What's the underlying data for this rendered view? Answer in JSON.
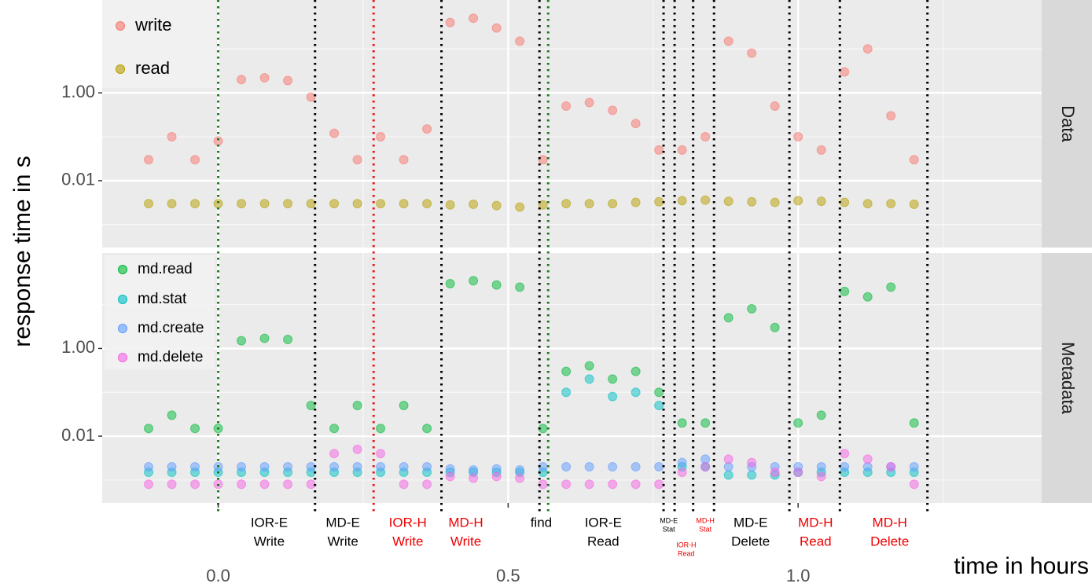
{
  "chart_data": [
    {
      "type": "scatter",
      "facet": "Data",
      "y_label": "response time in s",
      "log_y": true,
      "grid": true,
      "xlim": [
        -0.2,
        1.42
      ],
      "ylim": [
        0.0003,
        130
      ],
      "yticks": [
        0.01,
        {
          "value": 1,
          "label": "1.00"
        }
      ],
      "yminor": [
        0.001,
        0.1,
        10
      ],
      "x": [
        -0.12,
        -0.08,
        -0.04,
        0,
        0.04,
        0.08,
        0.12,
        0.16,
        0.2,
        0.24,
        0.28,
        0.32,
        0.36,
        0.4,
        0.44,
        0.48,
        0.52,
        0.56,
        0.6,
        0.64,
        0.68,
        0.72,
        0.76,
        0.8,
        0.84,
        0.88,
        0.92,
        0.96,
        1.0,
        1.04,
        1.08,
        1.12,
        1.16,
        1.2
      ],
      "series": [
        {
          "name": "write",
          "color": "#f8766d",
          "values": [
            0.03,
            0.1,
            0.03,
            0.08,
            2,
            2.2,
            1.9,
            0.8,
            0.12,
            0.03,
            0.1,
            0.03,
            0.15,
            40,
            50,
            30,
            15,
            0.03,
            0.5,
            0.6,
            0.4,
            0.2,
            0.05,
            0.05,
            0.1,
            15,
            8,
            0.5,
            0.1,
            0.05,
            3,
            10,
            0.3,
            0.03
          ]
        },
        {
          "name": "read",
          "color": "#b79f00",
          "values": [
            0.003,
            0.003,
            0.003,
            0.003,
            0.003,
            0.003,
            0.003,
            0.003,
            0.003,
            0.003,
            0.003,
            0.003,
            0.003,
            0.0028,
            0.0029,
            0.0027,
            0.0025,
            0.0028,
            0.003,
            0.003,
            0.003,
            0.0032,
            0.0033,
            0.0035,
            0.0036,
            0.0034,
            0.0033,
            0.0032,
            0.0035,
            0.0034,
            0.0032,
            0.003,
            0.003,
            0.0029
          ]
        }
      ],
      "vlines": [
        {
          "x": 0,
          "color": "#1b7a1b"
        },
        {
          "x": 0.167,
          "color": "#000000"
        },
        {
          "x": 0.268,
          "color": "#e41a1c"
        },
        {
          "x": 0.385,
          "color": "#000000"
        },
        {
          "x": 0.554,
          "color": "#000000"
        },
        {
          "x": 0.569,
          "color": "#1b7a1b"
        },
        {
          "x": 0.768,
          "color": "#000000"
        },
        {
          "x": 0.787,
          "color": "#000000"
        },
        {
          "x": 0.819,
          "color": "#000000"
        },
        {
          "x": 0.855,
          "color": "#000000"
        },
        {
          "x": 0.985,
          "color": "#000000"
        },
        {
          "x": 1.072,
          "color": "#000000"
        },
        {
          "x": 1.223,
          "color": "#000000"
        }
      ]
    },
    {
      "type": "scatter",
      "facet": "Metadata",
      "x_label": "time in hours",
      "log_y": true,
      "grid": true,
      "xlim": [
        -0.2,
        1.42
      ],
      "ylim": [
        0.0003,
        150
      ],
      "xticks": [
        {
          "value": 0,
          "label": "0.0"
        },
        0.5,
        {
          "value": 1,
          "label": "1.0"
        }
      ],
      "xminor": [
        0.25,
        0.75,
        1.25
      ],
      "yticks": [
        0.01,
        {
          "value": 1,
          "label": "1.00"
        }
      ],
      "yminor": [
        0.001,
        0.1,
        10
      ],
      "x": [
        -0.12,
        -0.08,
        -0.04,
        0,
        0.04,
        0.08,
        0.12,
        0.16,
        0.2,
        0.24,
        0.28,
        0.32,
        0.36,
        0.4,
        0.44,
        0.48,
        0.52,
        0.56,
        0.6,
        0.64,
        0.68,
        0.72,
        0.76,
        0.8,
        0.84,
        0.88,
        0.92,
        0.96,
        1.0,
        1.04,
        1.08,
        1.12,
        1.16,
        1.2
      ],
      "series": [
        {
          "name": "md.read",
          "color": "#00ba38",
          "values": [
            0.015,
            0.03,
            0.015,
            0.015,
            1.5,
            1.7,
            1.6,
            0.05,
            0.015,
            0.05,
            0.015,
            0.05,
            0.015,
            30,
            35,
            28,
            25,
            0.015,
            0.3,
            0.4,
            0.2,
            0.3,
            0.1,
            0.02,
            0.02,
            5,
            8,
            3,
            0.02,
            0.03,
            20,
            15,
            25,
            0.02
          ]
        },
        {
          "name": "md.stat",
          "color": "#00bfc4",
          "values": [
            0.0015,
            0.0015,
            0.0015,
            0.0015,
            0.0015,
            0.0015,
            0.0015,
            0.0015,
            0.0015,
            0.0015,
            0.0015,
            0.0015,
            0.0015,
            0.0015,
            0.0015,
            0.0015,
            0.0015,
            0.0015,
            0.1,
            0.2,
            0.08,
            0.1,
            0.05,
            0.002,
            0.002,
            0.0013,
            0.0013,
            0.0013,
            0.0015,
            0.0015,
            0.0015,
            0.0015,
            0.0015,
            0.0015
          ]
        },
        {
          "name": "md.create",
          "color": "#619cff",
          "values": [
            0.002,
            0.002,
            0.002,
            0.002,
            0.002,
            0.002,
            0.002,
            0.002,
            0.002,
            0.002,
            0.002,
            0.002,
            0.002,
            0.0018,
            0.0017,
            0.0018,
            0.0017,
            0.002,
            0.002,
            0.002,
            0.002,
            0.002,
            0.002,
            0.0025,
            0.003,
            0.002,
            0.002,
            0.002,
            0.002,
            0.002,
            0.002,
            0.002,
            0.002,
            0.002
          ]
        },
        {
          "name": "md.delete",
          "color": "#f564e3",
          "values": [
            0.0008,
            0.0008,
            0.0008,
            0.0008,
            0.0008,
            0.0008,
            0.0008,
            0.0008,
            0.004,
            0.005,
            0.004,
            0.0008,
            0.0008,
            0.0012,
            0.0011,
            0.0012,
            0.0011,
            0.0008,
            0.0008,
            0.0008,
            0.0008,
            0.0008,
            0.0008,
            0.0015,
            0.002,
            0.003,
            0.0025,
            0.0015,
            0.0015,
            0.0012,
            0.004,
            0.003,
            0.002,
            0.0008
          ]
        }
      ],
      "annotations": [
        {
          "x": 0.088,
          "lines": [
            "IOR-E",
            "Write"
          ],
          "color": "#000000"
        },
        {
          "x": 0.215,
          "lines": [
            "MD-E",
            "Write"
          ],
          "color": "#000000"
        },
        {
          "x": 0.327,
          "lines": [
            "IOR-H",
            "Write"
          ],
          "color": "#ee0000"
        },
        {
          "x": 0.427,
          "lines": [
            "MD-H",
            "Write"
          ],
          "color": "#ee0000"
        },
        {
          "x": 0.557,
          "lines": [
            "find"
          ],
          "color": "#000000"
        },
        {
          "x": 0.664,
          "lines": [
            "IOR-E",
            "Read"
          ],
          "color": "#000000"
        },
        {
          "x": 0.777,
          "lines": [
            "MD-E",
            "Stat"
          ],
          "color": "#000000",
          "small": true
        },
        {
          "x": 0.807,
          "lines": [
            "IOR-H",
            "Read"
          ],
          "color": "#ee0000",
          "small": true,
          "low": true
        },
        {
          "x": 0.84,
          "lines": [
            "MD-H",
            "Stat"
          ],
          "color": "#ee0000",
          "small": true
        },
        {
          "x": 0.918,
          "lines": [
            "MD-E",
            "Delete"
          ],
          "color": "#000000"
        },
        {
          "x": 1.03,
          "lines": [
            "MD-H",
            "Read"
          ],
          "color": "#ee0000"
        },
        {
          "x": 1.158,
          "lines": [
            "MD-H",
            "Delete"
          ],
          "color": "#ee0000"
        }
      ]
    }
  ]
}
